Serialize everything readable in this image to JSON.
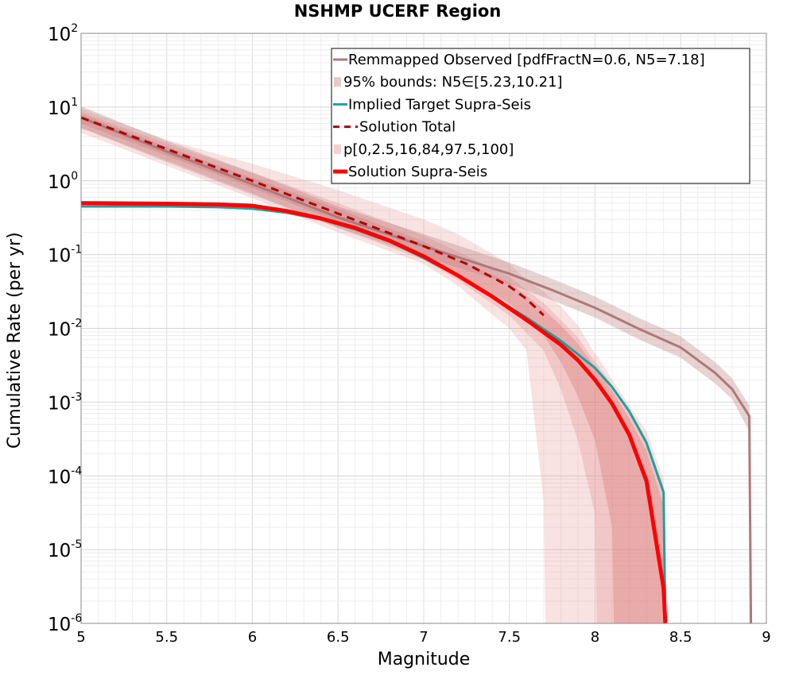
{
  "chart_data": {
    "type": "line",
    "title": "NSHMP UCERF Region",
    "xlabel": "Magnitude",
    "ylabel": "Cumulative Rate (per yr)",
    "xlim": [
      5,
      9
    ],
    "ylim": [
      1e-06,
      100
    ],
    "yscale": "log",
    "grid": true,
    "legend_position": "top-right",
    "x_ticks": [
      "5",
      "5.5",
      "6",
      "6.5",
      "7",
      "7.5",
      "8",
      "8.5",
      "9"
    ],
    "y_ticks": [
      {
        "base": "10",
        "exp": "-6"
      },
      {
        "base": "10",
        "exp": "-5"
      },
      {
        "base": "10",
        "exp": "-4"
      },
      {
        "base": "10",
        "exp": "-3"
      },
      {
        "base": "10",
        "exp": "-2"
      },
      {
        "base": "10",
        "exp": "-1"
      },
      {
        "base": "10",
        "exp": "0"
      },
      {
        "base": "10",
        "exp": "1"
      },
      {
        "base": "10",
        "exp": "2"
      }
    ],
    "legend": [
      {
        "label": "Remmapped Observed [pdfFractN=0.6, N5=7.18]",
        "style": "line",
        "color": "#b07878"
      },
      {
        "label": "95% bounds: N5∈[5.23,10.21]",
        "style": "band",
        "color": "#e8c8c8"
      },
      {
        "label": "Implied Target Supra-Seis",
        "style": "line",
        "color": "#20a0a0"
      },
      {
        "label": "Solution Total",
        "style": "dashed",
        "color": "#b00000"
      },
      {
        "label": "p[0,2.5,16,84,97.5,100]",
        "style": "band",
        "color": "#f4d0d0"
      },
      {
        "label": "Solution Supra-Seis",
        "style": "thick",
        "color": "#ff0000"
      }
    ],
    "series": [
      {
        "name": "Remmapped Observed [pdfFractN=0.6, N5=7.18]",
        "color": "#b07878",
        "x": [
          5.0,
          5.5,
          6.0,
          6.5,
          7.0,
          7.5,
          7.75,
          8.0,
          8.25,
          8.5,
          8.7,
          8.8,
          8.9,
          8.91
        ],
        "y": [
          7.2,
          2.5,
          0.9,
          0.32,
          0.13,
          0.055,
          0.033,
          0.019,
          0.01,
          0.0055,
          0.0025,
          0.0015,
          0.00065,
          1e-06
        ]
      },
      {
        "name": "95% bounds: N5∈[5.23,10.21]",
        "color": "#e0c0c0",
        "x": [
          5.0,
          5.5,
          6.0,
          6.5,
          7.0,
          7.5,
          7.75,
          8.0,
          8.25,
          8.5,
          8.7,
          8.8,
          8.9
        ],
        "lower": [
          5.23,
          1.8,
          0.65,
          0.23,
          0.094,
          0.04,
          0.024,
          0.014,
          0.0072,
          0.004,
          0.0018,
          0.0011,
          0.0004
        ],
        "upper": [
          10.21,
          3.5,
          1.3,
          0.45,
          0.19,
          0.078,
          0.047,
          0.027,
          0.014,
          0.0078,
          0.0035,
          0.0021,
          0.0009
        ]
      },
      {
        "name": "Implied Target Supra-Seis",
        "color": "#20a0a0",
        "x": [
          5.0,
          5.5,
          5.8,
          6.0,
          6.2,
          6.4,
          6.6,
          6.8,
          7.0,
          7.2,
          7.4,
          7.6,
          7.8,
          8.0,
          8.1,
          8.2,
          8.3,
          8.4,
          8.41
        ],
        "y": [
          0.45,
          0.45,
          0.44,
          0.42,
          0.37,
          0.3,
          0.22,
          0.15,
          0.09,
          0.051,
          0.027,
          0.014,
          0.0068,
          0.0029,
          0.0016,
          0.00075,
          0.00028,
          6e-05,
          1e-06
        ]
      },
      {
        "name": "Solution Total",
        "color": "#b00000",
        "x": [
          5.0,
          5.5,
          6.0,
          6.5,
          7.0,
          7.25,
          7.5,
          7.6,
          7.7
        ],
        "y": [
          7.2,
          2.7,
          1.0,
          0.36,
          0.13,
          0.075,
          0.037,
          0.025,
          0.015
        ]
      },
      {
        "name": "Solution Supra-Seis",
        "color": "#ff0000",
        "x": [
          5.0,
          5.5,
          5.8,
          6.0,
          6.2,
          6.4,
          6.6,
          6.8,
          7.0,
          7.2,
          7.4,
          7.6,
          7.8,
          7.9,
          8.0,
          8.1,
          8.2,
          8.3,
          8.4,
          8.41
        ],
        "y": [
          0.5,
          0.49,
          0.48,
          0.46,
          0.39,
          0.31,
          0.23,
          0.155,
          0.095,
          0.052,
          0.027,
          0.013,
          0.006,
          0.0037,
          0.002,
          0.00095,
          0.00036,
          8.5e-05,
          3e-06,
          1e-06
        ]
      }
    ],
    "bands": [
      {
        "name": "p 0-100",
        "x": [
          5.0,
          5.5,
          6.0,
          6.5,
          7.0,
          7.2,
          7.3,
          7.5,
          7.6,
          7.7,
          7.71,
          7.8,
          7.9,
          8.0,
          8.01,
          8.1,
          8.2,
          8.3,
          8.4,
          8.41
        ],
        "lower": [
          4.5,
          1.6,
          0.58,
          0.2,
          0.075,
          0.038,
          0.024,
          0.01,
          0.005,
          4.5e-05,
          1e-06,
          1e-06,
          1e-06,
          1e-06,
          1e-06,
          1e-06,
          1e-06,
          1e-06,
          1e-06,
          1e-06
        ],
        "upper": [
          9.5,
          3.6,
          1.7,
          0.75,
          0.3,
          0.19,
          0.14,
          0.075,
          0.045,
          0.032,
          0.03,
          0.02,
          0.011,
          0.0045,
          0.0043,
          0.002,
          0.0009,
          0.0004,
          9e-05,
          1e-06
        ]
      },
      {
        "name": "p 2.5-97.5",
        "x": [
          5.0,
          5.5,
          6.0,
          6.5,
          7.0,
          7.2,
          7.5,
          7.7,
          7.8,
          7.9,
          8.0,
          8.01,
          8.1,
          8.2,
          8.3,
          8.4,
          8.41
        ],
        "lower": [
          5.2,
          1.9,
          0.68,
          0.23,
          0.085,
          0.045,
          0.015,
          0.005,
          0.0015,
          0.0003,
          3e-05,
          1e-06,
          1e-06,
          1e-06,
          1e-06,
          1e-06,
          1e-06
        ],
        "upper": [
          8.5,
          3.2,
          1.3,
          0.5,
          0.18,
          0.11,
          0.05,
          0.022,
          0.013,
          0.0075,
          0.0035,
          0.0033,
          0.0017,
          0.0008,
          0.00032,
          7e-05,
          1e-06
        ]
      },
      {
        "name": "p 16-84",
        "x": [
          5.0,
          5.5,
          6.0,
          6.5,
          7.0,
          7.2,
          7.5,
          7.7,
          7.8,
          7.9,
          8.0,
          8.1,
          8.11,
          8.2,
          8.3,
          8.4,
          8.41
        ],
        "lower": [
          6.0,
          2.2,
          0.8,
          0.28,
          0.1,
          0.055,
          0.022,
          0.008,
          0.0035,
          0.0012,
          0.0003,
          2e-05,
          1e-06,
          1e-06,
          1e-06,
          1e-06,
          1e-06
        ],
        "upper": [
          8.0,
          2.9,
          1.1,
          0.42,
          0.15,
          0.085,
          0.042,
          0.018,
          0.011,
          0.0062,
          0.003,
          0.0014,
          0.0013,
          0.0006,
          0.00022,
          4e-05,
          1e-06
        ]
      }
    ]
  }
}
